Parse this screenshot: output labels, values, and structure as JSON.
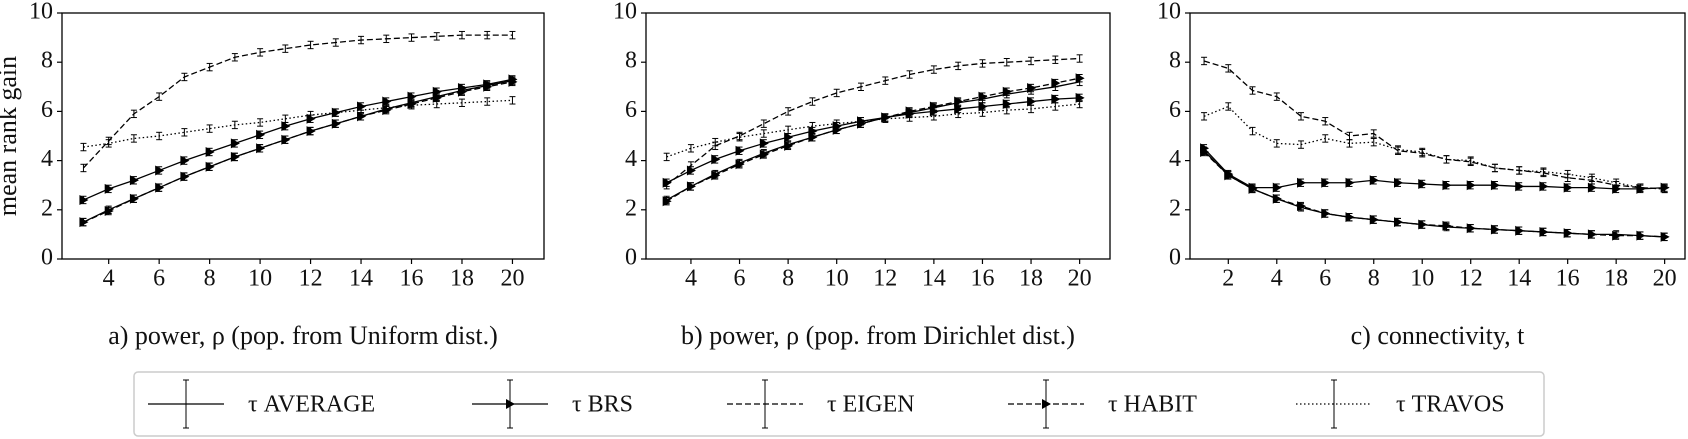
{
  "chart_data": [
    {
      "type": "line",
      "ylabel": "mean rank gain",
      "xlabel": "a) power, ρ (pop. from Uniform dist.)",
      "x": [
        3,
        4,
        5,
        6,
        7,
        8,
        9,
        10,
        11,
        12,
        13,
        14,
        15,
        16,
        17,
        18,
        19,
        20
      ],
      "xlim": [
        2.15,
        21.25
      ],
      "xticks": [
        4,
        6,
        8,
        10,
        12,
        14,
        16,
        18,
        20
      ],
      "ylim": [
        0,
        10
      ],
      "yticks": [
        0,
        2,
        4,
        6,
        8,
        10
      ],
      "series": [
        {
          "name": "τ AVERAGE",
          "color": "#000000",
          "dash": "solid",
          "marker": false,
          "error": 0.15,
          "values": [
            1.5,
            2.0,
            2.45,
            2.9,
            3.35,
            3.75,
            4.15,
            4.5,
            4.85,
            5.2,
            5.5,
            5.8,
            6.1,
            6.35,
            6.6,
            6.85,
            7.05,
            7.25
          ]
        },
        {
          "name": "τ BRS",
          "color": "#000000",
          "dash": "solid",
          "marker": true,
          "error": 0.15,
          "values": [
            2.4,
            2.85,
            3.2,
            3.6,
            4.0,
            4.35,
            4.7,
            5.05,
            5.4,
            5.7,
            5.95,
            6.2,
            6.4,
            6.6,
            6.8,
            6.95,
            7.1,
            7.3
          ]
        },
        {
          "name": "τ EIGEN",
          "color": "#000000",
          "dash": "dashed",
          "marker": false,
          "error": 0.15,
          "values": [
            3.7,
            4.8,
            5.9,
            6.6,
            7.4,
            7.8,
            8.2,
            8.4,
            8.55,
            8.7,
            8.8,
            8.9,
            8.95,
            9.0,
            9.05,
            9.1,
            9.1,
            9.1
          ]
        },
        {
          "name": "τ HABIT",
          "color": "#000000",
          "dash": "dashed",
          "marker": true,
          "error": 0.15,
          "values": [
            1.5,
            1.95,
            2.45,
            2.9,
            3.35,
            3.75,
            4.15,
            4.5,
            4.85,
            5.2,
            5.5,
            5.8,
            6.05,
            6.3,
            6.55,
            6.8,
            7.0,
            7.2
          ]
        },
        {
          "name": "τ TRAVOS",
          "color": "#000000",
          "dash": "dotted",
          "marker": false,
          "error": 0.15,
          "values": [
            4.55,
            4.7,
            4.9,
            5.0,
            5.15,
            5.3,
            5.45,
            5.55,
            5.7,
            5.85,
            5.95,
            6.05,
            6.15,
            6.25,
            6.3,
            6.35,
            6.4,
            6.45
          ]
        }
      ]
    },
    {
      "type": "line",
      "xlabel": "b) power, ρ (pop. from Dirichlet dist.)",
      "x": [
        3,
        4,
        5,
        6,
        7,
        8,
        9,
        10,
        11,
        12,
        13,
        14,
        15,
        16,
        17,
        18,
        19,
        20
      ],
      "xlim": [
        2.15,
        21.25
      ],
      "xticks": [
        4,
        6,
        8,
        10,
        12,
        14,
        16,
        18,
        20
      ],
      "ylim": [
        0,
        10
      ],
      "yticks": [
        0,
        2,
        4,
        6,
        8,
        10
      ],
      "series": [
        {
          "color": "#000000",
          "dash": "solid",
          "marker": false,
          "error": 0.15,
          "values": [
            2.4,
            2.95,
            3.45,
            3.9,
            4.3,
            4.65,
            4.95,
            5.25,
            5.5,
            5.75,
            5.95,
            6.15,
            6.35,
            6.5,
            6.7,
            6.85,
            7.0,
            7.2
          ]
        },
        {
          "color": "#000000",
          "dash": "solid",
          "marker": true,
          "error": 0.15,
          "values": [
            3.1,
            3.6,
            4.05,
            4.4,
            4.7,
            4.95,
            5.2,
            5.4,
            5.6,
            5.75,
            5.9,
            6.0,
            6.1,
            6.2,
            6.3,
            6.4,
            6.5,
            6.55
          ]
        },
        {
          "color": "#000000",
          "dash": "dashed",
          "marker": false,
          "error": 0.15,
          "values": [
            3.0,
            3.8,
            4.6,
            5.0,
            5.5,
            6.0,
            6.4,
            6.75,
            7.0,
            7.25,
            7.5,
            7.7,
            7.85,
            7.95,
            8.0,
            8.05,
            8.1,
            8.15
          ]
        },
        {
          "color": "#000000",
          "dash": "dashed",
          "marker": true,
          "error": 0.15,
          "values": [
            2.35,
            2.95,
            3.4,
            3.85,
            4.25,
            4.6,
            4.95,
            5.25,
            5.5,
            5.75,
            6.0,
            6.2,
            6.4,
            6.6,
            6.8,
            6.95,
            7.15,
            7.35
          ]
        },
        {
          "color": "#000000",
          "dash": "dotted",
          "marker": false,
          "error": 0.15,
          "values": [
            4.15,
            4.5,
            4.75,
            4.95,
            5.1,
            5.25,
            5.4,
            5.5,
            5.6,
            5.7,
            5.75,
            5.8,
            5.9,
            5.95,
            6.05,
            6.1,
            6.2,
            6.3
          ]
        }
      ]
    },
    {
      "type": "line",
      "xlabel": "c) connectivity, t",
      "x": [
        1,
        2,
        3,
        4,
        5,
        6,
        7,
        8,
        9,
        10,
        11,
        12,
        13,
        14,
        15,
        16,
        17,
        18,
        19,
        20
      ],
      "xlim": [
        0.42,
        20.84
      ],
      "xticks": [
        2,
        4,
        6,
        8,
        10,
        12,
        14,
        16,
        18,
        20
      ],
      "ylim": [
        0,
        10
      ],
      "yticks": [
        0,
        2,
        4,
        6,
        8,
        10
      ],
      "series": [
        {
          "color": "#000000",
          "dash": "solid",
          "marker": false,
          "error": 0.15,
          "values": [
            4.4,
            3.4,
            2.85,
            2.45,
            2.1,
            1.85,
            1.7,
            1.6,
            1.5,
            1.4,
            1.3,
            1.25,
            1.2,
            1.15,
            1.1,
            1.05,
            1.0,
            1.0,
            0.95,
            0.9
          ]
        },
        {
          "color": "#000000",
          "dash": "solid",
          "marker": true,
          "error": 0.15,
          "values": [
            4.5,
            3.45,
            2.9,
            2.9,
            3.1,
            3.1,
            3.1,
            3.2,
            3.1,
            3.05,
            3.0,
            3.0,
            3.0,
            2.95,
            2.95,
            2.9,
            2.9,
            2.85,
            2.85,
            2.9
          ]
        },
        {
          "color": "#000000",
          "dash": "dashed",
          "marker": false,
          "error": 0.15,
          "values": [
            8.05,
            7.75,
            6.85,
            6.6,
            5.8,
            5.6,
            5.0,
            5.1,
            4.4,
            4.3,
            4.05,
            3.95,
            3.7,
            3.6,
            3.5,
            3.3,
            3.2,
            3.0,
            2.9,
            2.85
          ]
        },
        {
          "color": "#000000",
          "dash": "dashed",
          "marker": true,
          "error": 0.15,
          "values": [
            4.35,
            3.4,
            2.85,
            2.45,
            2.15,
            1.85,
            1.7,
            1.6,
            1.5,
            1.4,
            1.35,
            1.25,
            1.2,
            1.15,
            1.1,
            1.05,
            1.0,
            0.95,
            0.95,
            0.9
          ]
        },
        {
          "color": "#000000",
          "dash": "dotted",
          "marker": false,
          "error": 0.15,
          "values": [
            5.8,
            6.2,
            5.2,
            4.7,
            4.65,
            4.9,
            4.7,
            4.75,
            4.45,
            4.35,
            4.05,
            4.0,
            3.7,
            3.6,
            3.55,
            3.45,
            3.3,
            3.1,
            2.9,
            2.85
          ]
        }
      ]
    }
  ]
}
